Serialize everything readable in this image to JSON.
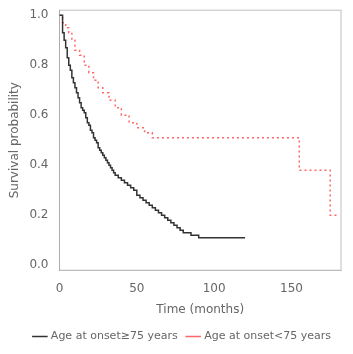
{
  "chart_data": {
    "type": "step",
    "xlabel": "Time (months)",
    "ylabel": "Survival probability",
    "xlim": [
      0,
      182
    ],
    "ylim": [
      -0.02,
      1.02
    ],
    "xticks": [
      0,
      50,
      100,
      150
    ],
    "yticks": [
      {
        "value": 0.0,
        "label": "0.0"
      },
      0.2,
      0.4,
      0.6,
      0.8,
      {
        "value": 1.0,
        "label": "1.0"
      }
    ],
    "grid": false,
    "legend": "lower right",
    "series": [
      {
        "name": "Age at onset≥75 years",
        "color": "#333333",
        "line_style": "solid",
        "x": [
          0,
          2,
          3,
          4,
          5,
          6,
          7,
          8,
          9,
          10,
          11,
          12,
          13,
          14,
          15,
          16,
          17,
          18,
          19,
          20,
          21,
          22,
          23,
          24,
          25,
          26,
          27,
          28,
          29,
          30,
          31,
          32,
          33,
          34,
          35,
          36,
          38,
          40,
          42,
          44,
          46,
          48,
          50,
          52,
          54,
          56,
          58,
          60,
          62,
          64,
          66,
          68,
          70,
          72,
          74,
          76,
          78,
          80,
          85,
          90,
          95,
          100,
          105,
          110,
          115,
          120
        ],
        "values": [
          1.0,
          0.93,
          0.9,
          0.87,
          0.83,
          0.8,
          0.78,
          0.75,
          0.73,
          0.71,
          0.69,
          0.67,
          0.65,
          0.63,
          0.62,
          0.61,
          0.59,
          0.57,
          0.56,
          0.54,
          0.53,
          0.51,
          0.5,
          0.49,
          0.47,
          0.46,
          0.45,
          0.44,
          0.43,
          0.42,
          0.41,
          0.4,
          0.39,
          0.38,
          0.37,
          0.36,
          0.35,
          0.34,
          0.33,
          0.32,
          0.31,
          0.3,
          0.28,
          0.27,
          0.26,
          0.25,
          0.24,
          0.23,
          0.22,
          0.21,
          0.2,
          0.19,
          0.18,
          0.17,
          0.16,
          0.15,
          0.14,
          0.13,
          0.12,
          0.11,
          0.11,
          0.11,
          0.11,
          0.11,
          0.11,
          0.11
        ]
      },
      {
        "name": "Age at onset<75 years",
        "color": "#ff6666",
        "line_style": "dotted",
        "x": [
          0,
          2,
          4,
          6,
          8,
          10,
          13,
          16,
          19,
          22,
          25,
          28,
          32,
          36,
          40,
          45,
          50,
          55,
          60,
          65,
          70,
          75,
          80,
          85,
          90,
          95,
          100,
          105,
          110,
          115,
          120,
          125,
          130,
          135,
          140,
          145,
          150,
          155,
          160,
          165,
          170,
          175,
          180
        ],
        "values": [
          1.0,
          0.97,
          0.95,
          0.93,
          0.9,
          0.86,
          0.84,
          0.8,
          0.77,
          0.74,
          0.71,
          0.69,
          0.66,
          0.63,
          0.6,
          0.57,
          0.55,
          0.53,
          0.51,
          0.51,
          0.51,
          0.51,
          0.51,
          0.51,
          0.51,
          0.51,
          0.51,
          0.51,
          0.51,
          0.51,
          0.51,
          0.51,
          0.51,
          0.51,
          0.51,
          0.51,
          0.51,
          0.38,
          0.38,
          0.38,
          0.38,
          0.2,
          0.2
        ]
      }
    ]
  }
}
